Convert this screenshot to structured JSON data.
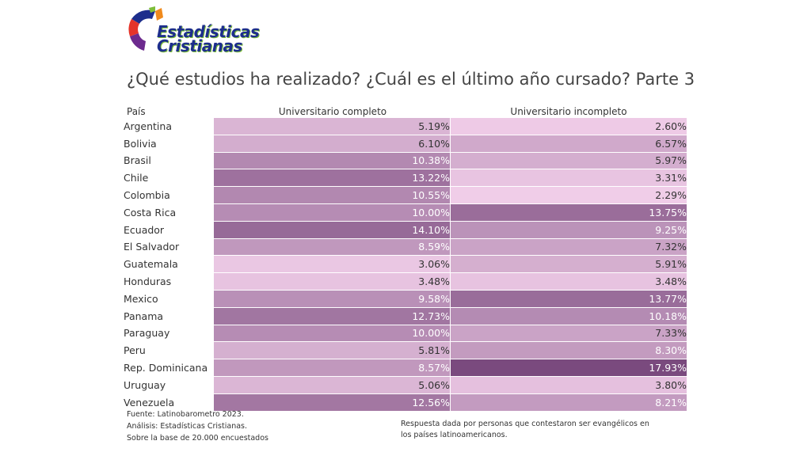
{
  "logo": {
    "line1": "Estadísticas",
    "line2": "Cristianas"
  },
  "title": "¿Qué estudios ha realizado? ¿Cuál es el último año cursado? Parte 3",
  "chart_data": {
    "type": "table",
    "headers": {
      "country": "País",
      "col1": "Universitario completo",
      "col2": "Universitario incompleto"
    },
    "rows": [
      {
        "country": "Argentina",
        "v1": 5.19,
        "v2": 2.6
      },
      {
        "country": "Bolivia",
        "v1": 6.1,
        "v2": 6.57
      },
      {
        "country": "Brasil",
        "v1": 10.38,
        "v2": 5.97
      },
      {
        "country": "Chile",
        "v1": 13.22,
        "v2": 3.31
      },
      {
        "country": "Colombia",
        "v1": 10.55,
        "v2": 2.29
      },
      {
        "country": "Costa Rica",
        "v1": 10.0,
        "v2": 13.75
      },
      {
        "country": "Ecuador",
        "v1": 14.1,
        "v2": 9.25
      },
      {
        "country": "El Salvador",
        "v1": 8.59,
        "v2": 7.32
      },
      {
        "country": "Guatemala",
        "v1": 3.06,
        "v2": 5.91
      },
      {
        "country": "Honduras",
        "v1": 3.48,
        "v2": 3.48
      },
      {
        "country": "Mexico",
        "v1": 9.58,
        "v2": 13.77
      },
      {
        "country": "Panama",
        "v1": 12.73,
        "v2": 10.18
      },
      {
        "country": "Paraguay",
        "v1": 10.0,
        "v2": 7.33
      },
      {
        "country": "Peru",
        "v1": 5.81,
        "v2": 8.3
      },
      {
        "country": "Rep. Dominicana",
        "v1": 8.57,
        "v2": 17.93
      },
      {
        "country": "Uruguay",
        "v1": 5.06,
        "v2": 3.8
      },
      {
        "country": "Venezuela",
        "v1": 12.56,
        "v2": 8.21
      }
    ],
    "color_low": "#f0cde8",
    "color_high": "#7a4a7e",
    "value_range": [
      2.29,
      17.93
    ]
  },
  "footer": {
    "left": [
      "Fuente: Latinobarometro 2023.",
      "Análisis: Estadísticas Cristianas.",
      "Sobre la base de 20.000 encuestados"
    ],
    "right": "Respuesta dada por personas que contestaron ser evangélicos en los países latinoamericanos."
  }
}
